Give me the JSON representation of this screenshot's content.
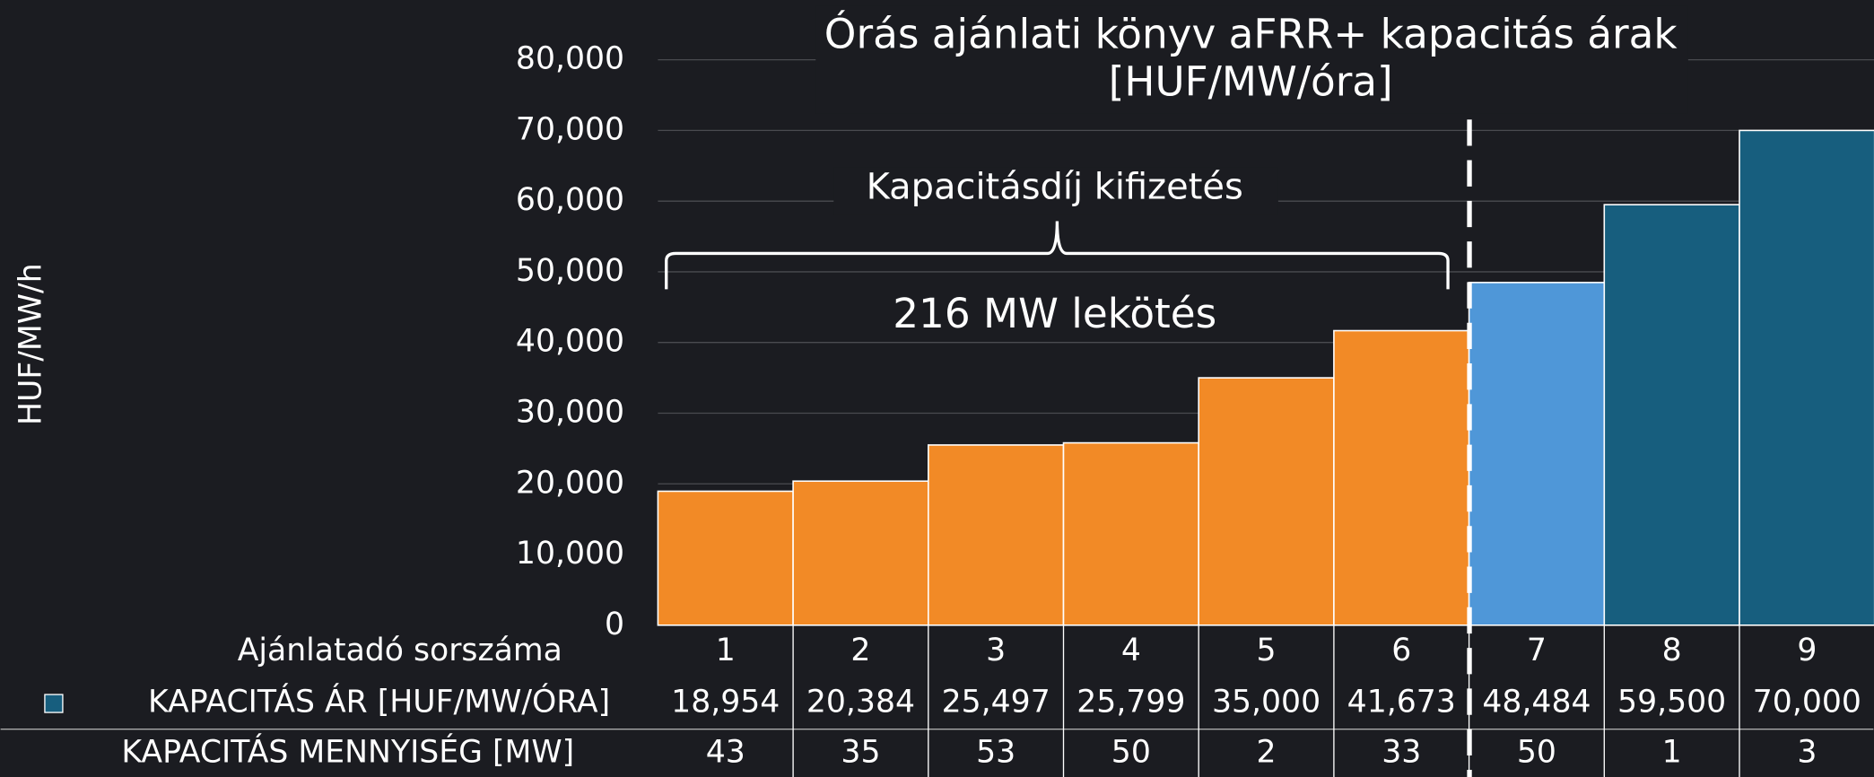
{
  "chart_data": {
    "type": "bar",
    "title": [
      "Órás ajánlati könyv aFRR+ kapacitás árak",
      "[HUF/MW/óra]"
    ],
    "y_label": "HUF/MW/h",
    "annotations": [
      "Kapacitásdíj kifizetés",
      "216 MW lekötés"
    ],
    "row_labels": [
      "Ajánlatadó sorszáma",
      "KAPACITÁS ÁR [HUF/MW/ÓRA]",
      "KAPACITÁS MENNYISÉG [MW]"
    ],
    "categories": [
      "1",
      "2",
      "3",
      "4",
      "5",
      "6",
      "7",
      "8",
      "9"
    ],
    "values": [
      18954,
      20384,
      25497,
      25799,
      35000,
      41673,
      48484,
      59500,
      70000
    ],
    "value_labels": [
      "18,954",
      "20,384",
      "25,497",
      "25,799",
      "35,000",
      "41,673",
      "48,484",
      "59,500",
      "70,000"
    ],
    "quantities": [
      43,
      35,
      53,
      50,
      2,
      33,
      50,
      1,
      3
    ],
    "colors": [
      "#f28a26",
      "#f28a26",
      "#f28a26",
      "#f28a26",
      "#f28a26",
      "#f28a26",
      "#4f97d8",
      "#175e7e",
      "#175e7e"
    ],
    "legend_color": "#175e7e",
    "ylim": [
      0,
      80000
    ],
    "yticks": [
      0,
      {
        "value": 10000,
        "label": "10,000"
      },
      {
        "value": 20000,
        "label": "20,000"
      },
      {
        "value": 30000,
        "label": "30,000"
      },
      {
        "value": 40000,
        "label": "40,000"
      },
      {
        "value": 50000,
        "label": "50,000"
      },
      {
        "value": 60000,
        "label": "60,000"
      },
      {
        "value": 70000,
        "label": "70,000"
      },
      {
        "value": 80000,
        "label": "80,000"
      }
    ],
    "grid": true
  }
}
